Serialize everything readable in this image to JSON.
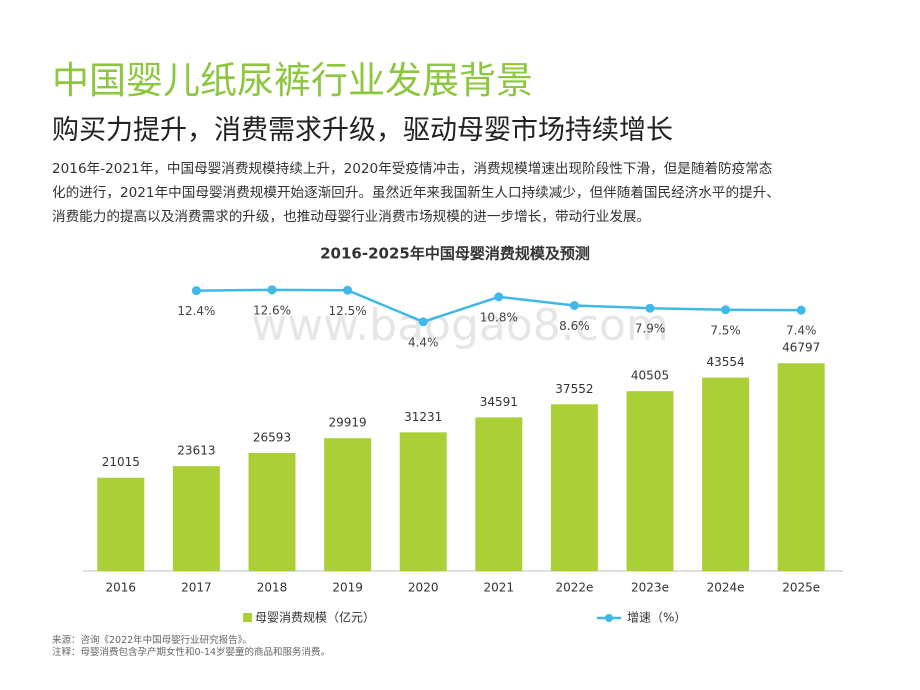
{
  "header": {
    "title": "中国婴儿纸尿裤行业发展背景",
    "subtitle": "购买力提升，消费需求升级，驱动母婴市场持续增长"
  },
  "paragraph": [
    "2016年-2021年，中国母婴消费规模持续上升，2020年受疫情冲击，消费规模增速出现阶段性下滑，但是随着防疫常态",
    "化的进行，2021年中国母婴消费规模开始逐渐回升。虽然近年来我国新生人口持续减少，但伴随着国民经济水平的提升、",
    "消费能力的提高以及消费需求的升级，也推动母婴行业消费市场规模的进一步增长，带动行业发展。"
  ],
  "chart_data": {
    "type": "bar",
    "title": "2016-2025年中国母婴消费规模及预测",
    "categories": [
      "2016",
      "2017",
      "2018",
      "2019",
      "2020",
      "2021",
      "2022e",
      "2023e",
      "2024e",
      "2025e"
    ],
    "series": [
      {
        "name": "母婴消费规模（亿元）",
        "color": "#abd037",
        "values": [
          21015,
          23613,
          26593,
          29919,
          31231,
          34591,
          37552,
          40505,
          43554,
          46797
        ]
      },
      {
        "name": "增速（%）",
        "color": "#3fb8ea",
        "axis": "y2",
        "values": [
          null,
          12.4,
          12.6,
          12.5,
          4.4,
          10.8,
          8.6,
          7.9,
          7.5,
          7.4
        ],
        "value_labels": [
          null,
          "12.4%",
          "12.6%",
          "12.5%",
          "4.4%",
          "10.8%",
          "8.6%",
          "7.9%",
          "7.5%",
          "7.4%"
        ]
      }
    ],
    "ylim": [
      0,
      50000
    ],
    "y2lim": [
      0,
      20
    ],
    "legend": "bottom",
    "watermark": "www.baogao8.com"
  },
  "footnotes": [
    "来源：咨询《2022年中国母婴行业研究报告》。",
    "注释：母婴消费包含孕产期女性和0-14岁婴童的商品和服务消费。"
  ]
}
